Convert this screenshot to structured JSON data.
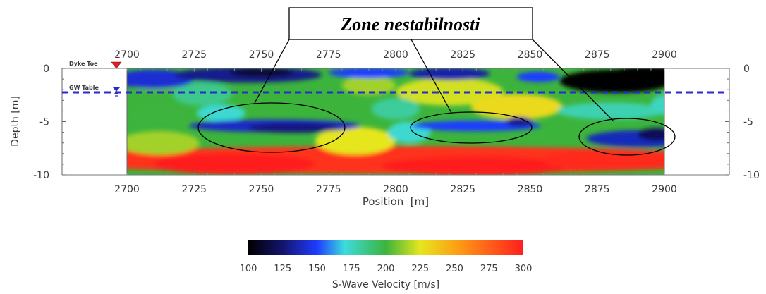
{
  "chart_data": {
    "type": "heatmap",
    "title": "",
    "annotation": "Zone nestabilnosti",
    "xlabel": "Position  [m]",
    "ylabel": "Depth [m]",
    "xlim": [
      2700,
      2900
    ],
    "ylim": [
      -10,
      0
    ],
    "x_ticks": [
      "2700",
      "2725",
      "2750",
      "2775",
      "2800",
      "2825",
      "2850",
      "2875",
      "2900"
    ],
    "y_ticks_left": [
      "0",
      "-5",
      "-10"
    ],
    "y_ticks_right": [
      "0",
      "-5",
      "-10"
    ],
    "markers": [
      {
        "label": "Dyke Toe",
        "depth": 0,
        "color": "#e0202a"
      },
      {
        "label": "GW Table",
        "depth": -2.3,
        "color": "#2a2ad0"
      }
    ],
    "instability_zones": [
      {
        "center_position": 2754,
        "center_depth": -5.5
      },
      {
        "center_position": 2832,
        "center_depth": -5.5
      },
      {
        "center_position": 2889,
        "center_depth": -6.3
      }
    ],
    "colorbar": {
      "label": "S-Wave Velocity [m/s]",
      "ticks": [
        "100",
        "125",
        "150",
        "175",
        "200",
        "225",
        "250",
        "275",
        "300"
      ],
      "range": [
        100,
        300
      ],
      "stops": [
        {
          "value": 100,
          "color": "#000000"
        },
        {
          "value": 125,
          "color": "#14146e"
        },
        {
          "value": 150,
          "color": "#1e3cff"
        },
        {
          "value": 170,
          "color": "#3cdcdc"
        },
        {
          "value": 200,
          "color": "#3cb43c"
        },
        {
          "value": 225,
          "color": "#e6e61e"
        },
        {
          "value": 255,
          "color": "#ff9614"
        },
        {
          "value": 300,
          "color": "#ff1e1e"
        }
      ]
    }
  }
}
